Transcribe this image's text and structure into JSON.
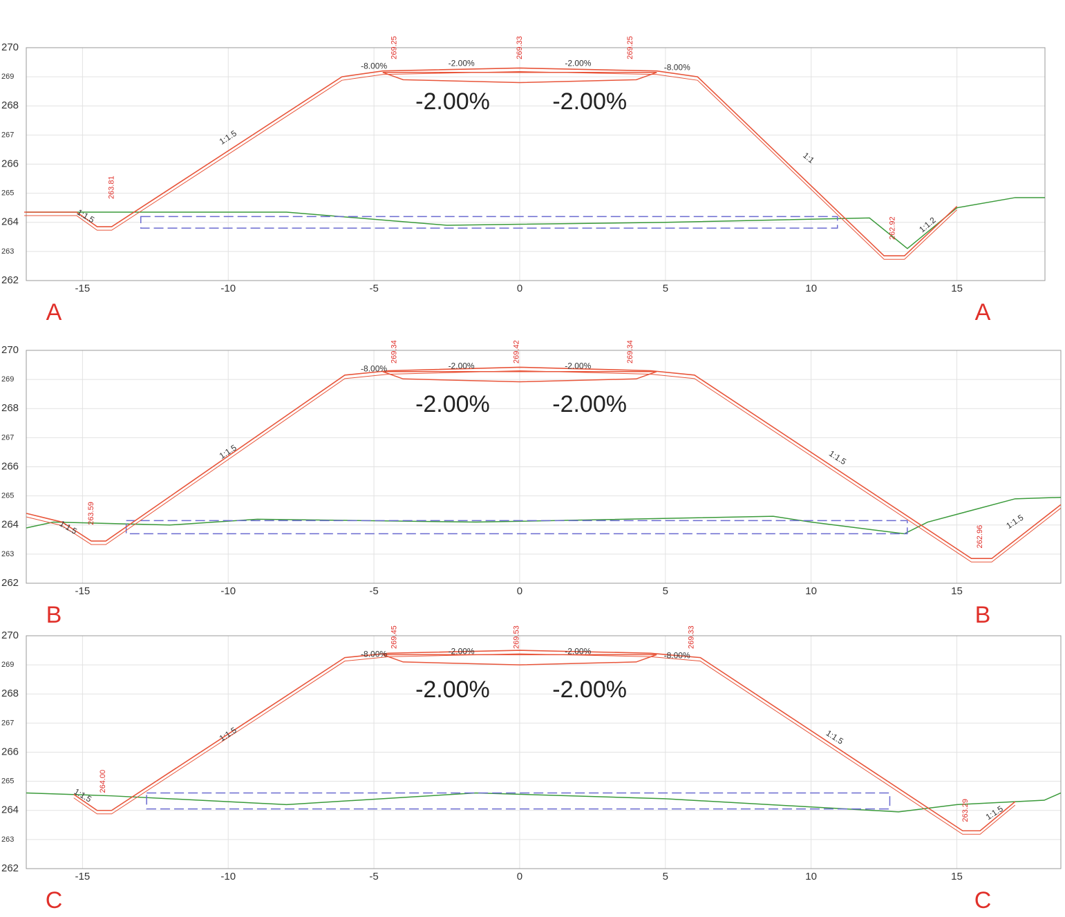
{
  "sections": [
    {
      "label_left": "A",
      "label_right": "A",
      "xlim": [
        -16.93,
        18.02
      ],
      "ylim": [
        262,
        270
      ],
      "xticks": [
        -15,
        -10,
        -5,
        0,
        5,
        10,
        15
      ],
      "yticks": [
        262,
        263,
        264,
        265,
        266,
        267,
        268,
        269,
        270
      ],
      "elevations": [
        "269.25",
        "269.33",
        "269.25",
        "263.81",
        "262.92"
      ],
      "crossfall_small": [
        "-8.00%",
        "-2.00%",
        "-2.00%",
        "-8.00%"
      ],
      "crossfall_large": [
        "-2.00%",
        "-2.00%"
      ],
      "slopes": [
        "1:1.5",
        "1:1",
        "1:1.5",
        "1:1.2"
      ]
    },
    {
      "label_left": "B",
      "label_right": "B",
      "xlim": [
        -16.93,
        18.57
      ],
      "ylim": [
        262,
        270
      ],
      "xticks": [
        -15,
        -10,
        -5,
        0,
        5,
        10,
        15
      ],
      "yticks": [
        262,
        263,
        264,
        265,
        266,
        267,
        268,
        269,
        270
      ],
      "elevations": [
        "269.34",
        "269.42",
        "269.34",
        "263.59",
        "262.96"
      ],
      "crossfall_small": [
        "-8.00%",
        "-2.00%",
        "-2.00%"
      ],
      "crossfall_large": [
        "-2.00%",
        "-2.00%"
      ],
      "slopes": [
        "1:1.5",
        "1:1.5",
        "1:1.5",
        "1:1.5"
      ]
    },
    {
      "label_left": "C",
      "label_right": "C",
      "xlim": [
        -16.93,
        18.57
      ],
      "ylim": [
        262,
        270
      ],
      "xticks": [
        -15,
        -10,
        -5,
        0,
        5,
        10,
        15
      ],
      "yticks": [
        262,
        263,
        264,
        265,
        266,
        267,
        268,
        269,
        270
      ],
      "elevations": [
        "269.45",
        "269.53",
        "269.33",
        "264.00",
        "263.29"
      ],
      "crossfall_small": [
        "-8.00%",
        "-2.00%",
        "-2.00%",
        "-8.00%"
      ],
      "crossfall_large": [
        "-2.00%",
        "-2.00%"
      ],
      "slopes": [
        "1:1.5",
        "1:1.5",
        "1:1.5",
        "1:1.5"
      ]
    }
  ]
}
